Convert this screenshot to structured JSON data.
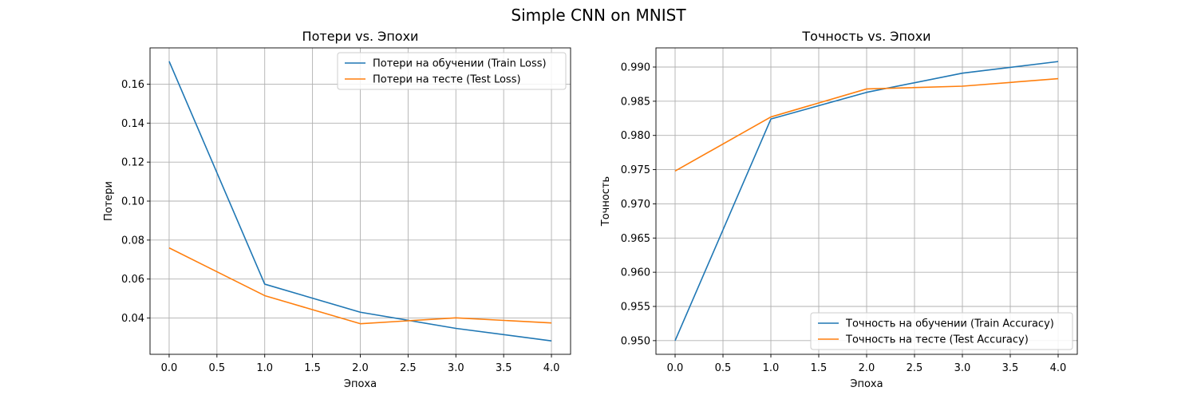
{
  "figure_title": "Simple CNN on MNIST",
  "colors": {
    "train": "#1f77b4",
    "test": "#ff7f0e",
    "grid": "#b0b0b0",
    "frame": "#000000"
  },
  "chart_data": [
    {
      "type": "line",
      "title": "Потери vs. Эпохи",
      "xlabel": "Эпоха",
      "ylabel": "Потери",
      "xlim": [
        -0.2,
        4.2
      ],
      "ylim": [
        0.0214,
        0.1786
      ],
      "xticks": [
        0.0,
        0.5,
        1.0,
        1.5,
        2.0,
        2.5,
        3.0,
        3.5,
        4.0
      ],
      "xtick_labels": [
        "0.0",
        "0.5",
        "1.0",
        "1.5",
        "2.0",
        "2.5",
        "3.0",
        "3.5",
        "4.0"
      ],
      "yticks": [
        0.04,
        0.06,
        0.08,
        0.1,
        0.12,
        0.14,
        0.16
      ],
      "ytick_labels": [
        "0.04",
        "0.06",
        "0.08",
        "0.10",
        "0.12",
        "0.14",
        "0.16"
      ],
      "grid": true,
      "legend_loc": "top-right",
      "x": [
        0,
        1,
        2,
        3,
        4
      ],
      "series": [
        {
          "name": "Потери на обучении (Train Loss)",
          "values": [
            0.1717,
            0.0574,
            0.043,
            0.0347,
            0.0283
          ]
        },
        {
          "name": "Потери на тесте (Test Loss)",
          "values": [
            0.076,
            0.0515,
            0.0371,
            0.0401,
            0.0375
          ]
        }
      ]
    },
    {
      "type": "line",
      "title": "Точность vs. Эпохи",
      "xlabel": "Эпоха",
      "ylabel": "Точность",
      "xlim": [
        -0.2,
        4.2
      ],
      "ylim": [
        0.948,
        0.9928
      ],
      "xticks": [
        0.0,
        0.5,
        1.0,
        1.5,
        2.0,
        2.5,
        3.0,
        3.5,
        4.0
      ],
      "xtick_labels": [
        "0.0",
        "0.5",
        "1.0",
        "1.5",
        "2.0",
        "2.5",
        "3.0",
        "3.5",
        "4.0"
      ],
      "yticks": [
        0.95,
        0.955,
        0.96,
        0.965,
        0.97,
        0.975,
        0.98,
        0.985,
        0.99
      ],
      "ytick_labels": [
        "0.950",
        "0.955",
        "0.960",
        "0.965",
        "0.970",
        "0.975",
        "0.980",
        "0.985",
        "0.990"
      ],
      "grid": true,
      "legend_loc": "bottom-right",
      "x": [
        0,
        1,
        2,
        3,
        4
      ],
      "series": [
        {
          "name": "Точность на обучении (Train Accuracy)",
          "values": [
            0.95,
            0.9824,
            0.9863,
            0.9891,
            0.9908
          ]
        },
        {
          "name": "Точность на тесте (Test Accuracy)",
          "values": [
            0.9748,
            0.9827,
            0.9868,
            0.9872,
            0.9883
          ]
        }
      ]
    }
  ]
}
